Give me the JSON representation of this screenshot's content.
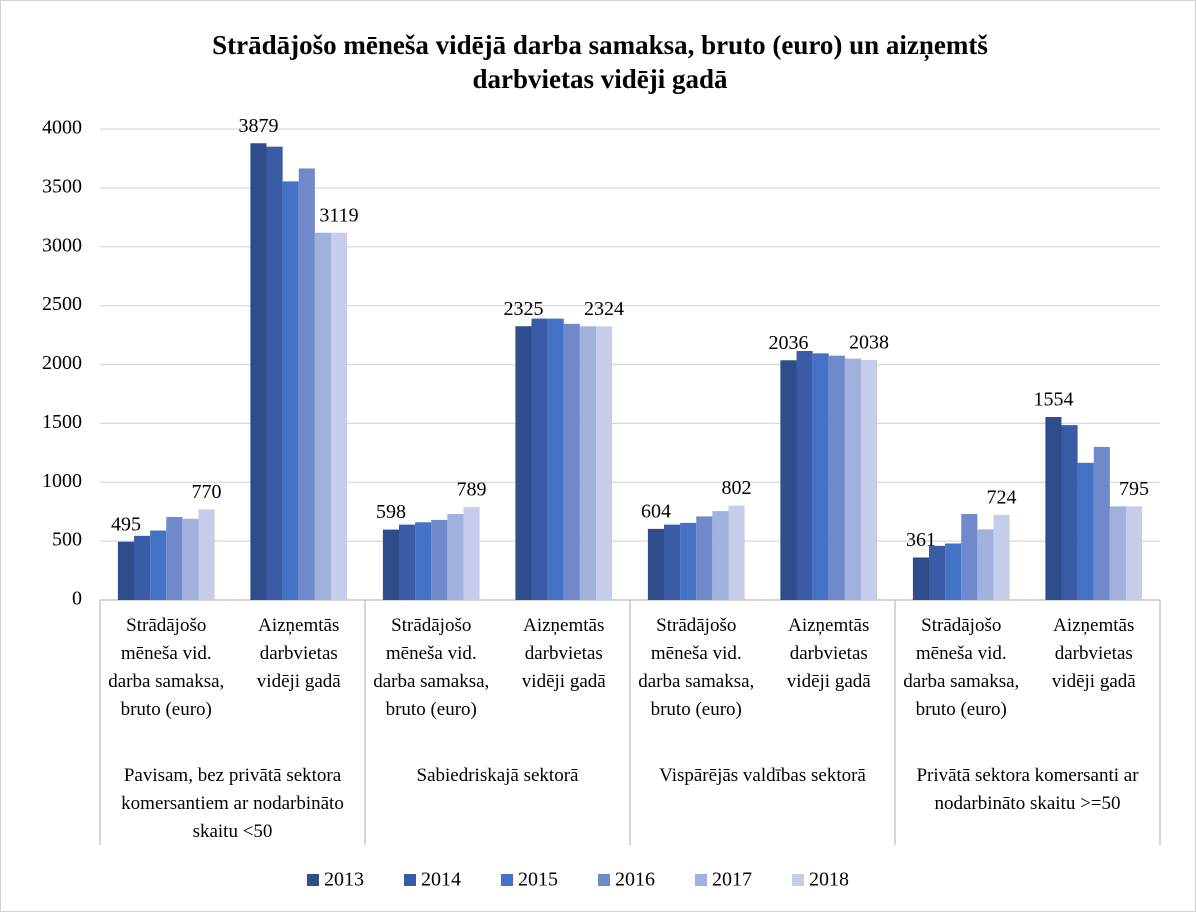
{
  "chart_data": {
    "type": "bar",
    "title": "Strādājošo mēneša vidējā darba samaksa, bruto (euro) un aizņemtš darbvietas vidēji gadā",
    "categories": [
      "Strādājošo mēneša vid. darba samaksa, bruto (euro)",
      "Aizņemtās darbvietas vidēji gadā",
      "Strādājošo mēneša vid. darba samaksa, bruto (euro)",
      "Aizņemtās darbvietas vidēji gadā",
      "Strādājošo mēneša vid. darba samaksa, bruto (euro)",
      "Aizņemtās darbvietas vidēji gadā",
      "Strādājošo mēneša vid. darba samaksa, bruto (euro)",
      "Aizņemtās darbvietas vidēji gadā"
    ],
    "groups": [
      "Pavisam, bez privātā sektora komersantiem ar nodarbināto skaitu <50",
      "Sabiedriskajā sektorā",
      "Vispārējās valdības sektorā",
      "Privātā sektora komersanti ar nodarbināto skaitu >=50"
    ],
    "series": [
      {
        "name": "2013",
        "color": "#2f4d8a",
        "data_labels": true,
        "values": [
          495,
          3879,
          598,
          2325,
          604,
          2036,
          361,
          1554
        ]
      },
      {
        "name": "2014",
        "color": "#3a5ca6",
        "data_labels": false,
        "values": [
          545,
          3850,
          640,
          2390,
          640,
          2115,
          460,
          1485
        ]
      },
      {
        "name": "2015",
        "color": "#4472c4",
        "data_labels": false,
        "values": [
          590,
          3555,
          660,
          2390,
          655,
          2095,
          480,
          1165
        ]
      },
      {
        "name": "2016",
        "color": "#7089cb",
        "data_labels": false,
        "values": [
          705,
          3665,
          680,
          2345,
          710,
          2075,
          730,
          1300
        ]
      },
      {
        "name": "2017",
        "color": "#a1b1dd",
        "data_labels": false,
        "values": [
          690,
          3119,
          730,
          2324,
          755,
          2050,
          600,
          795
        ]
      },
      {
        "name": "2018",
        "color": "#c5cdea",
        "data_labels": true,
        "values": [
          770,
          3119,
          789,
          2324,
          802,
          2038,
          724,
          795
        ]
      }
    ],
    "ylim": [
      0,
      4000
    ],
    "yticks": [
      0,
      500,
      1000,
      1500,
      2000,
      2500,
      3000,
      3500,
      4000
    ],
    "grid": true,
    "legend": "bottom"
  }
}
